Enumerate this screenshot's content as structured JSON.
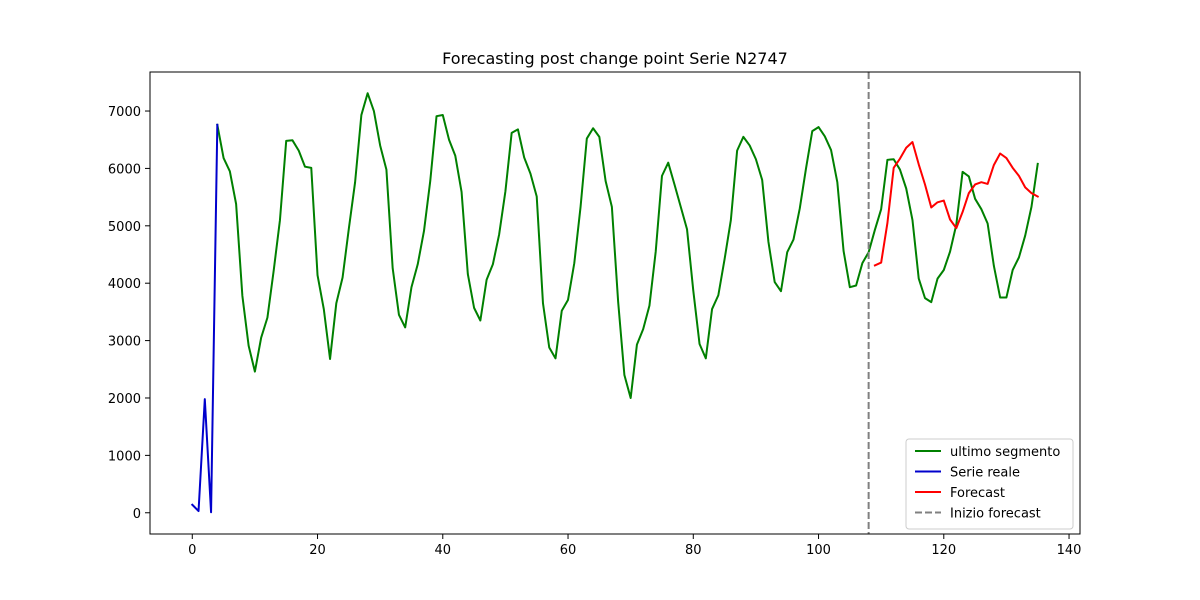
{
  "chart_data": {
    "type": "line",
    "title": "Forecasting post change point Serie N2747",
    "xlabel": "",
    "ylabel": "",
    "xlim": [
      -6.75,
      141.75
    ],
    "ylim": [
      -370,
      7680
    ],
    "x_ticks": [
      0,
      20,
      40,
      60,
      80,
      100,
      120,
      140
    ],
    "y_ticks": [
      0,
      1000,
      2000,
      3000,
      4000,
      5000,
      6000,
      7000
    ],
    "grid": false,
    "legend_position": "lower-right",
    "series": [
      {
        "name": "ultimo segmento",
        "color": "#008000",
        "x": [
          4,
          5,
          6,
          7,
          8,
          9,
          10,
          11,
          12,
          13,
          14,
          15,
          16,
          17,
          18,
          19,
          20,
          21,
          22,
          23,
          24,
          25,
          26,
          27,
          28,
          29,
          30,
          31,
          32,
          33,
          34,
          35,
          36,
          37,
          38,
          39,
          40,
          41,
          42,
          43,
          44,
          45,
          46,
          47,
          48,
          49,
          50,
          51,
          52,
          53,
          54,
          55,
          56,
          57,
          58,
          59,
          60,
          61,
          62,
          63,
          64,
          65,
          66,
          67,
          68,
          69,
          70,
          71,
          72,
          73,
          74,
          75,
          76,
          77,
          78,
          79,
          80,
          81,
          82,
          83,
          84,
          85,
          86,
          87,
          88,
          89,
          90,
          91,
          92,
          93,
          94,
          95,
          96,
          97,
          98,
          99,
          100,
          101,
          102,
          103,
          104,
          105,
          106,
          107,
          108,
          109,
          110,
          111,
          112,
          113,
          114,
          115,
          116,
          117,
          118,
          119,
          120,
          121,
          122,
          123,
          124,
          125,
          126,
          127,
          128,
          129,
          130,
          131,
          132,
          133,
          134,
          135
        ],
        "y": [
          6760,
          6180,
          5950,
          5380,
          3780,
          2910,
          2460,
          3050,
          3400,
          4220,
          5100,
          6480,
          6490,
          6310,
          6030,
          6010,
          4140,
          3550,
          2680,
          3650,
          4100,
          4950,
          5760,
          6930,
          7310,
          7000,
          6400,
          5980,
          4260,
          3450,
          3230,
          3930,
          4330,
          4910,
          5780,
          6910,
          6930,
          6500,
          6220,
          5590,
          4160,
          3570,
          3350,
          4060,
          4330,
          4850,
          5600,
          6620,
          6680,
          6190,
          5910,
          5510,
          3650,
          2880,
          2690,
          3520,
          3710,
          4350,
          5330,
          6520,
          6700,
          6550,
          5780,
          5330,
          3680,
          2400,
          2000,
          2930,
          3200,
          3610,
          4550,
          5870,
          6100,
          5720,
          5330,
          4940,
          3870,
          2940,
          2690,
          3550,
          3790,
          4420,
          5100,
          6310,
          6550,
          6400,
          6160,
          5800,
          4720,
          4020,
          3860,
          4540,
          4760,
          5300,
          6000,
          6650,
          6720,
          6560,
          6320,
          5760,
          4560,
          3930,
          3960,
          4350,
          4540,
          4930,
          5290,
          6150,
          6160,
          5980,
          5650,
          5100,
          4080,
          3740,
          3670,
          4080,
          4230,
          4550,
          5020,
          5940,
          5860,
          5470,
          5290,
          5040,
          4300,
          3750,
          3750,
          4230,
          4450,
          4830,
          5330,
          6080
        ]
      },
      {
        "name": "Serie reale",
        "color": "#0000cc",
        "x": [
          0,
          1,
          2,
          3,
          4
        ],
        "y": [
          140,
          30,
          1980,
          10,
          6760
        ]
      },
      {
        "name": "Forecast",
        "color": "#ff0000",
        "x": [
          109,
          110,
          111,
          112,
          113,
          114,
          115,
          116,
          117,
          118,
          119,
          120,
          121,
          122,
          123,
          124,
          125,
          126,
          127,
          128,
          129,
          130,
          131,
          132,
          133,
          134,
          135
        ],
        "y": [
          4310,
          4360,
          5050,
          6010,
          6170,
          6360,
          6460,
          6070,
          5720,
          5320,
          5410,
          5440,
          5110,
          4960,
          5240,
          5570,
          5720,
          5760,
          5730,
          6060,
          6260,
          6180,
          6010,
          5870,
          5670,
          5570,
          5510
        ]
      }
    ],
    "vline": {
      "name": "Inizio forecast",
      "x": 108,
      "color": "#808080",
      "style": "dashed"
    }
  }
}
